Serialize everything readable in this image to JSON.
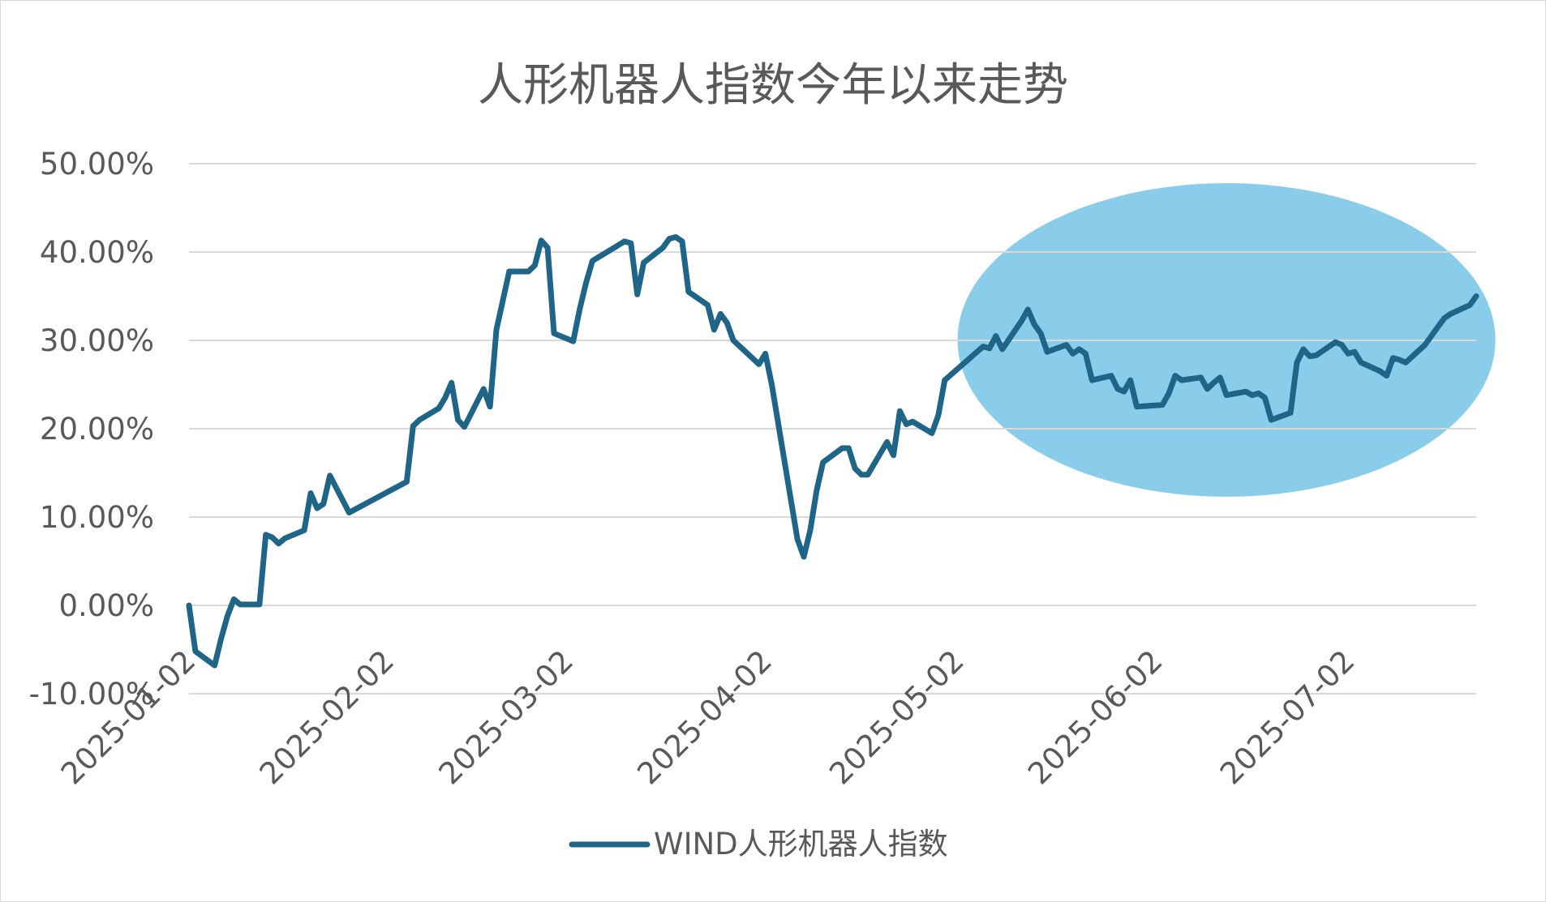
{
  "chart_data": {
    "type": "line",
    "title": "人形机器人指数今年以来走势",
    "xlabel": "",
    "ylabel": "",
    "y_unit": "percent",
    "ylim": [
      -10,
      50
    ],
    "y_ticks": [
      50,
      40,
      30,
      20,
      10,
      0,
      -10
    ],
    "y_tick_labels": [
      "50.00%",
      "40.00%",
      "30.00%",
      "20.00%",
      "10.00%",
      "0.00%",
      "-10.00%"
    ],
    "x_tick_labels": [
      "2025-01-02",
      "2025-02-02",
      "2025-03-02",
      "2025-04-02",
      "2025-05-02",
      "2025-06-02",
      "2025-07-02"
    ],
    "grid": true,
    "legend_position": "bottom",
    "highlight": {
      "shape": "ellipse",
      "color": "#79c6e8",
      "x_range": [
        "2025-05-02",
        "2025-07-25"
      ],
      "y_range": [
        12.3,
        47.8
      ]
    },
    "series": [
      {
        "name": "WIND人形机器人指数",
        "color": "#1f6587",
        "points": [
          [
            "2025-01-02",
            0.0
          ],
          [
            "2025-01-03",
            -5.2
          ],
          [
            "2025-01-06",
            -6.8
          ],
          [
            "2025-01-07",
            -3.8
          ],
          [
            "2025-01-08",
            -1.2
          ],
          [
            "2025-01-09",
            0.7
          ],
          [
            "2025-01-10",
            0.1
          ],
          [
            "2025-01-13",
            0.1
          ],
          [
            "2025-01-14",
            8.0
          ],
          [
            "2025-01-15",
            7.7
          ],
          [
            "2025-01-16",
            7.0
          ],
          [
            "2025-01-17",
            7.6
          ],
          [
            "2025-01-20",
            8.5
          ],
          [
            "2025-01-21",
            12.7
          ],
          [
            "2025-01-22",
            11.0
          ],
          [
            "2025-01-23",
            11.5
          ],
          [
            "2025-01-24",
            14.7
          ],
          [
            "2025-01-27",
            10.5
          ],
          [
            "2025-02-05",
            14.0
          ],
          [
            "2025-02-06",
            20.3
          ],
          [
            "2025-02-07",
            21.0
          ],
          [
            "2025-02-10",
            22.3
          ],
          [
            "2025-02-11",
            23.5
          ],
          [
            "2025-02-12",
            25.2
          ],
          [
            "2025-02-13",
            21.0
          ],
          [
            "2025-02-14",
            20.2
          ],
          [
            "2025-02-17",
            24.5
          ],
          [
            "2025-02-18",
            22.5
          ],
          [
            "2025-02-19",
            31.2
          ],
          [
            "2025-02-20",
            34.5
          ],
          [
            "2025-02-21",
            37.8
          ],
          [
            "2025-02-24",
            37.8
          ],
          [
            "2025-02-25",
            38.5
          ],
          [
            "2025-02-26",
            41.3
          ],
          [
            "2025-02-27",
            40.5
          ],
          [
            "2025-02-28",
            30.8
          ],
          [
            "2025-03-03",
            29.9
          ],
          [
            "2025-03-04",
            33.5
          ],
          [
            "2025-03-05",
            36.5
          ],
          [
            "2025-03-06",
            39.0
          ],
          [
            "2025-03-11",
            41.2
          ],
          [
            "2025-03-12",
            41.0
          ],
          [
            "2025-03-13",
            35.2
          ],
          [
            "2025-03-14",
            38.8
          ],
          [
            "2025-03-17",
            40.5
          ],
          [
            "2025-03-18",
            41.5
          ],
          [
            "2025-03-19",
            41.7
          ],
          [
            "2025-03-20",
            41.2
          ],
          [
            "2025-03-21",
            35.5
          ],
          [
            "2025-03-24",
            34.0
          ],
          [
            "2025-03-25",
            31.2
          ],
          [
            "2025-03-26",
            33.0
          ],
          [
            "2025-03-27",
            32.0
          ],
          [
            "2025-03-28",
            30.0
          ],
          [
            "2025-04-01",
            27.3
          ],
          [
            "2025-04-02",
            28.5
          ],
          [
            "2025-04-03",
            25.0
          ],
          [
            "2025-04-07",
            7.5
          ],
          [
            "2025-04-08",
            5.5
          ],
          [
            "2025-04-09",
            8.5
          ],
          [
            "2025-04-10",
            13.0
          ],
          [
            "2025-04-11",
            16.2
          ],
          [
            "2025-04-14",
            17.8
          ],
          [
            "2025-04-15",
            17.8
          ],
          [
            "2025-04-16",
            15.5
          ],
          [
            "2025-04-17",
            14.8
          ],
          [
            "2025-04-18",
            14.8
          ],
          [
            "2025-04-21",
            18.5
          ],
          [
            "2025-04-22",
            17.0
          ],
          [
            "2025-04-23",
            22.0
          ],
          [
            "2025-04-24",
            20.5
          ],
          [
            "2025-04-25",
            20.8
          ],
          [
            "2025-04-28",
            19.5
          ],
          [
            "2025-04-29",
            21.5
          ],
          [
            "2025-04-30",
            25.5
          ],
          [
            "2025-05-06",
            29.3
          ],
          [
            "2025-05-07",
            29.1
          ],
          [
            "2025-05-08",
            30.5
          ],
          [
            "2025-05-09",
            29.0
          ],
          [
            "2025-05-12",
            32.2
          ],
          [
            "2025-05-13",
            33.5
          ],
          [
            "2025-05-14",
            31.8
          ],
          [
            "2025-05-15",
            30.8
          ],
          [
            "2025-05-16",
            28.7
          ],
          [
            "2025-05-19",
            29.5
          ],
          [
            "2025-05-20",
            28.5
          ],
          [
            "2025-05-21",
            29.0
          ],
          [
            "2025-05-22",
            28.5
          ],
          [
            "2025-05-23",
            25.5
          ],
          [
            "2025-05-26",
            26.0
          ],
          [
            "2025-05-27",
            24.5
          ],
          [
            "2025-05-28",
            24.2
          ],
          [
            "2025-05-29",
            25.5
          ],
          [
            "2025-05-30",
            22.5
          ],
          [
            "2025-06-03",
            22.7
          ],
          [
            "2025-06-04",
            24.0
          ],
          [
            "2025-06-05",
            26.0
          ],
          [
            "2025-06-06",
            25.5
          ],
          [
            "2025-06-09",
            25.8
          ],
          [
            "2025-06-10",
            24.5
          ],
          [
            "2025-06-11",
            25.2
          ],
          [
            "2025-06-12",
            25.8
          ],
          [
            "2025-06-13",
            23.8
          ],
          [
            "2025-06-16",
            24.2
          ],
          [
            "2025-06-17",
            23.8
          ],
          [
            "2025-06-18",
            24.0
          ],
          [
            "2025-06-19",
            23.5
          ],
          [
            "2025-06-20",
            21.0
          ],
          [
            "2025-06-23",
            21.8
          ],
          [
            "2025-06-24",
            27.5
          ],
          [
            "2025-06-25",
            29.0
          ],
          [
            "2025-06-26",
            28.2
          ],
          [
            "2025-06-27",
            28.3
          ],
          [
            "2025-06-30",
            29.8
          ],
          [
            "2025-07-01",
            29.5
          ],
          [
            "2025-07-02",
            28.5
          ],
          [
            "2025-07-03",
            28.7
          ],
          [
            "2025-07-04",
            27.5
          ],
          [
            "2025-07-07",
            26.5
          ],
          [
            "2025-07-08",
            26.0
          ],
          [
            "2025-07-09",
            28.0
          ],
          [
            "2025-07-10",
            27.8
          ],
          [
            "2025-07-11",
            27.5
          ],
          [
            "2025-07-14",
            29.5
          ],
          [
            "2025-07-15",
            30.5
          ],
          [
            "2025-07-16",
            31.5
          ],
          [
            "2025-07-17",
            32.5
          ],
          [
            "2025-07-18",
            33.0
          ],
          [
            "2025-07-21",
            34.0
          ],
          [
            "2025-07-22",
            35.0
          ]
        ]
      }
    ]
  }
}
